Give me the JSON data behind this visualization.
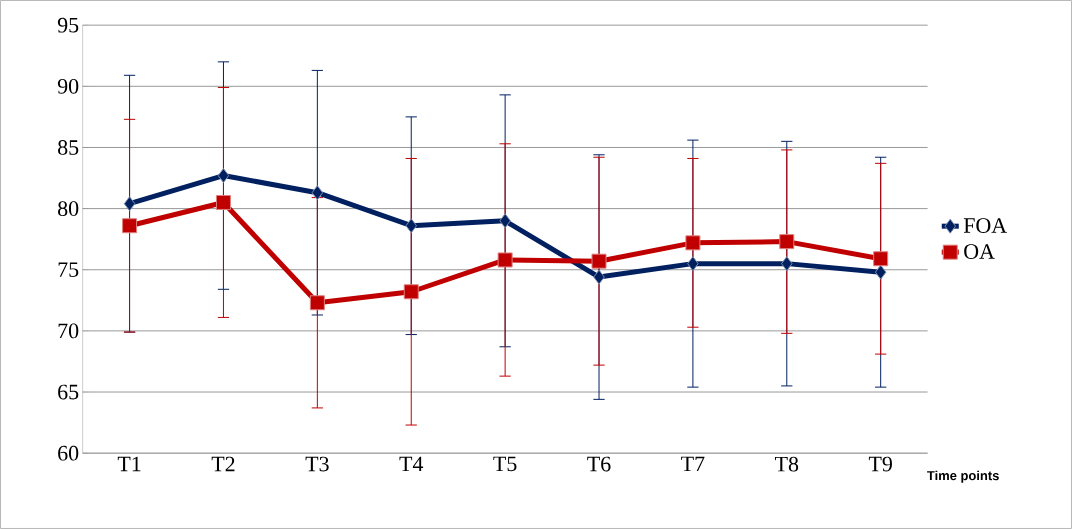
{
  "chart_data": {
    "type": "line",
    "xlabel": "Time points",
    "categories": [
      "T1",
      "T2",
      "T3",
      "T4",
      "T5",
      "T6",
      "T7",
      "T8",
      "T9"
    ],
    "series": [
      {
        "name": "FOA",
        "color": "#002060",
        "marker": "diamond",
        "values": [
          80.4,
          82.7,
          81.3,
          78.6,
          79.0,
          74.4,
          75.5,
          75.5,
          74.8
        ],
        "errors": [
          10.5,
          9.3,
          10.0,
          8.9,
          10.3,
          10.0,
          10.1,
          10.0,
          9.4
        ]
      },
      {
        "name": "OA",
        "color": "#c00000",
        "marker": "square",
        "values": [
          78.6,
          80.5,
          72.3,
          73.2,
          75.8,
          75.7,
          77.2,
          77.3,
          75.9
        ],
        "errors": [
          8.7,
          9.4,
          8.6,
          10.9,
          9.5,
          8.5,
          6.9,
          7.5,
          7.8
        ]
      }
    ],
    "ylim": [
      60,
      95
    ],
    "yticks": [
      60,
      65,
      70,
      75,
      80,
      85,
      90,
      95
    ],
    "grid": "y",
    "legend": "right",
    "line_style": "solid"
  }
}
